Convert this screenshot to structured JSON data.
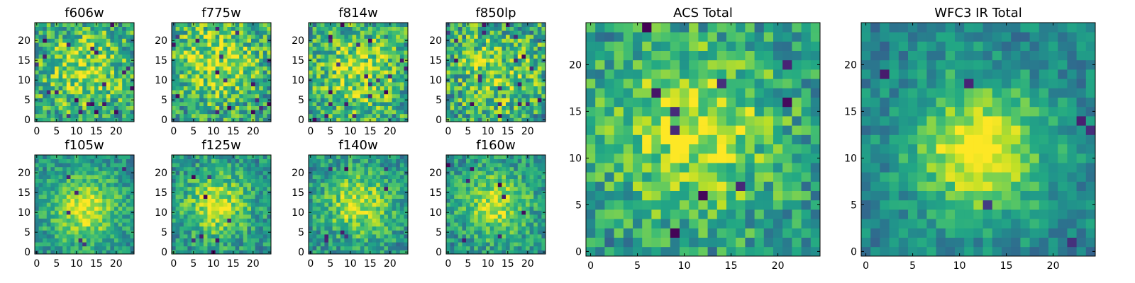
{
  "chart_data": [
    {
      "type": "heatmap",
      "title": "f606w",
      "xlim": [
        0,
        24
      ],
      "ylim": [
        0,
        24
      ],
      "xticks": [
        0,
        5,
        10,
        15,
        20
      ],
      "yticks": [
        0,
        5,
        10,
        15,
        20
      ],
      "grid_size": 25,
      "seed": 11,
      "center": [
        12,
        13
      ],
      "noise": 0.55,
      "peak": 0.3,
      "sigma": 8,
      "base": 0.4,
      "dark_spots": 22
    },
    {
      "type": "heatmap",
      "title": "f775w",
      "xlim": [
        0,
        24
      ],
      "ylim": [
        0,
        24
      ],
      "xticks": [
        0,
        5,
        10,
        15,
        20
      ],
      "yticks": [
        0,
        5,
        10,
        15,
        20
      ],
      "grid_size": 25,
      "seed": 23,
      "center": [
        11,
        15
      ],
      "noise": 0.55,
      "peak": 0.32,
      "sigma": 8,
      "base": 0.4,
      "dark_spots": 18
    },
    {
      "type": "heatmap",
      "title": "f814w",
      "xlim": [
        0,
        24
      ],
      "ylim": [
        0,
        24
      ],
      "xticks": [
        0,
        5,
        10,
        15,
        20
      ],
      "yticks": [
        0,
        5,
        10,
        15,
        20
      ],
      "grid_size": 25,
      "seed": 37,
      "center": [
        12,
        12
      ],
      "noise": 0.55,
      "peak": 0.3,
      "sigma": 8,
      "base": 0.4,
      "dark_spots": 20
    },
    {
      "type": "heatmap",
      "title": "f850lp",
      "xlim": [
        0,
        24
      ],
      "ylim": [
        0,
        24
      ],
      "xticks": [
        0,
        5,
        10,
        15,
        20
      ],
      "yticks": [
        0,
        5,
        10,
        15,
        20
      ],
      "grid_size": 25,
      "seed": 41,
      "center": [
        12,
        12
      ],
      "noise": 0.6,
      "peak": 0.25,
      "sigma": 8,
      "base": 0.4,
      "dark_spots": 20
    },
    {
      "type": "heatmap",
      "title": "f105w",
      "xlim": [
        0,
        24
      ],
      "ylim": [
        0,
        24
      ],
      "xticks": [
        0,
        5,
        10,
        15,
        20
      ],
      "yticks": [
        0,
        5,
        10,
        15,
        20
      ],
      "grid_size": 25,
      "seed": 53,
      "center": [
        12,
        11
      ],
      "noise": 0.35,
      "peak": 0.45,
      "sigma": 6,
      "base": 0.35,
      "dark_spots": 6
    },
    {
      "type": "heatmap",
      "title": "f125w",
      "xlim": [
        0,
        24
      ],
      "ylim": [
        0,
        24
      ],
      "xticks": [
        0,
        5,
        10,
        15,
        20
      ],
      "yticks": [
        0,
        5,
        10,
        15,
        20
      ],
      "grid_size": 25,
      "seed": 67,
      "center": [
        11,
        12
      ],
      "noise": 0.4,
      "peak": 0.4,
      "sigma": 6,
      "base": 0.35,
      "dark_spots": 8
    },
    {
      "type": "heatmap",
      "title": "f140w",
      "xlim": [
        0,
        24
      ],
      "ylim": [
        0,
        24
      ],
      "xticks": [
        0,
        5,
        10,
        15,
        20
      ],
      "yticks": [
        0,
        5,
        10,
        15,
        20
      ],
      "grid_size": 25,
      "seed": 79,
      "center": [
        12,
        12
      ],
      "noise": 0.4,
      "peak": 0.4,
      "sigma": 6,
      "base": 0.35,
      "dark_spots": 8
    },
    {
      "type": "heatmap",
      "title": "f160w",
      "xlim": [
        0,
        24
      ],
      "ylim": [
        0,
        24
      ],
      "xticks": [
        0,
        5,
        10,
        15,
        20
      ],
      "yticks": [
        0,
        5,
        10,
        15,
        20
      ],
      "grid_size": 25,
      "seed": 83,
      "center": [
        12,
        12
      ],
      "noise": 0.4,
      "peak": 0.4,
      "sigma": 6,
      "base": 0.35,
      "dark_spots": 8
    },
    {
      "type": "heatmap",
      "title": "ACS Total",
      "xlim": [
        0,
        24
      ],
      "ylim": [
        0,
        24
      ],
      "xticks": [
        0,
        5,
        10,
        15,
        20
      ],
      "yticks": [
        0,
        5,
        10,
        15,
        20
      ],
      "grid_size": 25,
      "seed": 97,
      "center": [
        11,
        13
      ],
      "noise": 0.45,
      "peak": 0.4,
      "sigma": 7,
      "base": 0.35,
      "dark_spots": 10
    },
    {
      "type": "heatmap",
      "title": "WFC3 IR Total",
      "xlim": [
        0,
        24
      ],
      "ylim": [
        0,
        24
      ],
      "xticks": [
        0,
        5,
        10,
        15,
        20
      ],
      "yticks": [
        0,
        5,
        10,
        15,
        20
      ],
      "grid_size": 25,
      "seed": 101,
      "center": [
        12,
        11
      ],
      "noise": 0.3,
      "peak": 0.55,
      "sigma": 5,
      "base": 0.3,
      "dark_spots": 6
    }
  ]
}
